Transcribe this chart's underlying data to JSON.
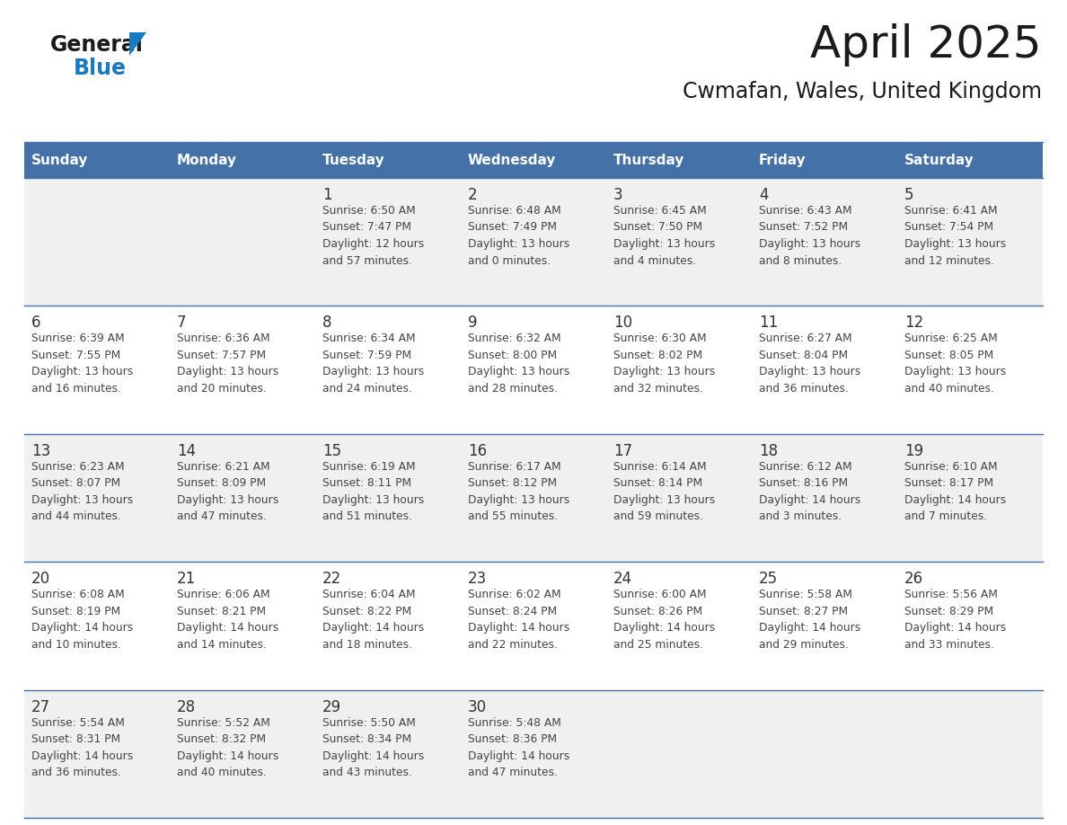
{
  "title": "April 2025",
  "subtitle": "Cwmafan, Wales, United Kingdom",
  "header_bg_color": "#4472A8",
  "header_text_color": "#FFFFFF",
  "row_bg_even": "#F0F0F0",
  "row_bg_odd": "#FFFFFF",
  "text_color": "#333333",
  "day_number_color": "#333333",
  "separator_color": "#4472A8",
  "days_of_week": [
    "Sunday",
    "Monday",
    "Tuesday",
    "Wednesday",
    "Thursday",
    "Friday",
    "Saturday"
  ],
  "weeks": [
    [
      {
        "day": null,
        "info": null
      },
      {
        "day": null,
        "info": null
      },
      {
        "day": 1,
        "info": "Sunrise: 6:50 AM\nSunset: 7:47 PM\nDaylight: 12 hours\nand 57 minutes."
      },
      {
        "day": 2,
        "info": "Sunrise: 6:48 AM\nSunset: 7:49 PM\nDaylight: 13 hours\nand 0 minutes."
      },
      {
        "day": 3,
        "info": "Sunrise: 6:45 AM\nSunset: 7:50 PM\nDaylight: 13 hours\nand 4 minutes."
      },
      {
        "day": 4,
        "info": "Sunrise: 6:43 AM\nSunset: 7:52 PM\nDaylight: 13 hours\nand 8 minutes."
      },
      {
        "day": 5,
        "info": "Sunrise: 6:41 AM\nSunset: 7:54 PM\nDaylight: 13 hours\nand 12 minutes."
      }
    ],
    [
      {
        "day": 6,
        "info": "Sunrise: 6:39 AM\nSunset: 7:55 PM\nDaylight: 13 hours\nand 16 minutes."
      },
      {
        "day": 7,
        "info": "Sunrise: 6:36 AM\nSunset: 7:57 PM\nDaylight: 13 hours\nand 20 minutes."
      },
      {
        "day": 8,
        "info": "Sunrise: 6:34 AM\nSunset: 7:59 PM\nDaylight: 13 hours\nand 24 minutes."
      },
      {
        "day": 9,
        "info": "Sunrise: 6:32 AM\nSunset: 8:00 PM\nDaylight: 13 hours\nand 28 minutes."
      },
      {
        "day": 10,
        "info": "Sunrise: 6:30 AM\nSunset: 8:02 PM\nDaylight: 13 hours\nand 32 minutes."
      },
      {
        "day": 11,
        "info": "Sunrise: 6:27 AM\nSunset: 8:04 PM\nDaylight: 13 hours\nand 36 minutes."
      },
      {
        "day": 12,
        "info": "Sunrise: 6:25 AM\nSunset: 8:05 PM\nDaylight: 13 hours\nand 40 minutes."
      }
    ],
    [
      {
        "day": 13,
        "info": "Sunrise: 6:23 AM\nSunset: 8:07 PM\nDaylight: 13 hours\nand 44 minutes."
      },
      {
        "day": 14,
        "info": "Sunrise: 6:21 AM\nSunset: 8:09 PM\nDaylight: 13 hours\nand 47 minutes."
      },
      {
        "day": 15,
        "info": "Sunrise: 6:19 AM\nSunset: 8:11 PM\nDaylight: 13 hours\nand 51 minutes."
      },
      {
        "day": 16,
        "info": "Sunrise: 6:17 AM\nSunset: 8:12 PM\nDaylight: 13 hours\nand 55 minutes."
      },
      {
        "day": 17,
        "info": "Sunrise: 6:14 AM\nSunset: 8:14 PM\nDaylight: 13 hours\nand 59 minutes."
      },
      {
        "day": 18,
        "info": "Sunrise: 6:12 AM\nSunset: 8:16 PM\nDaylight: 14 hours\nand 3 minutes."
      },
      {
        "day": 19,
        "info": "Sunrise: 6:10 AM\nSunset: 8:17 PM\nDaylight: 14 hours\nand 7 minutes."
      }
    ],
    [
      {
        "day": 20,
        "info": "Sunrise: 6:08 AM\nSunset: 8:19 PM\nDaylight: 14 hours\nand 10 minutes."
      },
      {
        "day": 21,
        "info": "Sunrise: 6:06 AM\nSunset: 8:21 PM\nDaylight: 14 hours\nand 14 minutes."
      },
      {
        "day": 22,
        "info": "Sunrise: 6:04 AM\nSunset: 8:22 PM\nDaylight: 14 hours\nand 18 minutes."
      },
      {
        "day": 23,
        "info": "Sunrise: 6:02 AM\nSunset: 8:24 PM\nDaylight: 14 hours\nand 22 minutes."
      },
      {
        "day": 24,
        "info": "Sunrise: 6:00 AM\nSunset: 8:26 PM\nDaylight: 14 hours\nand 25 minutes."
      },
      {
        "day": 25,
        "info": "Sunrise: 5:58 AM\nSunset: 8:27 PM\nDaylight: 14 hours\nand 29 minutes."
      },
      {
        "day": 26,
        "info": "Sunrise: 5:56 AM\nSunset: 8:29 PM\nDaylight: 14 hours\nand 33 minutes."
      }
    ],
    [
      {
        "day": 27,
        "info": "Sunrise: 5:54 AM\nSunset: 8:31 PM\nDaylight: 14 hours\nand 36 minutes."
      },
      {
        "day": 28,
        "info": "Sunrise: 5:52 AM\nSunset: 8:32 PM\nDaylight: 14 hours\nand 40 minutes."
      },
      {
        "day": 29,
        "info": "Sunrise: 5:50 AM\nSunset: 8:34 PM\nDaylight: 14 hours\nand 43 minutes."
      },
      {
        "day": 30,
        "info": "Sunrise: 5:48 AM\nSunset: 8:36 PM\nDaylight: 14 hours\nand 47 minutes."
      },
      {
        "day": null,
        "info": null
      },
      {
        "day": null,
        "info": null
      },
      {
        "day": null,
        "info": null
      }
    ]
  ],
  "logo_general_color": "#1a1a1a",
  "logo_blue_color": "#1a7abf",
  "logo_triangle_color": "#1a7abf",
  "fig_width": 11.88,
  "fig_height": 9.18,
  "dpi": 100
}
